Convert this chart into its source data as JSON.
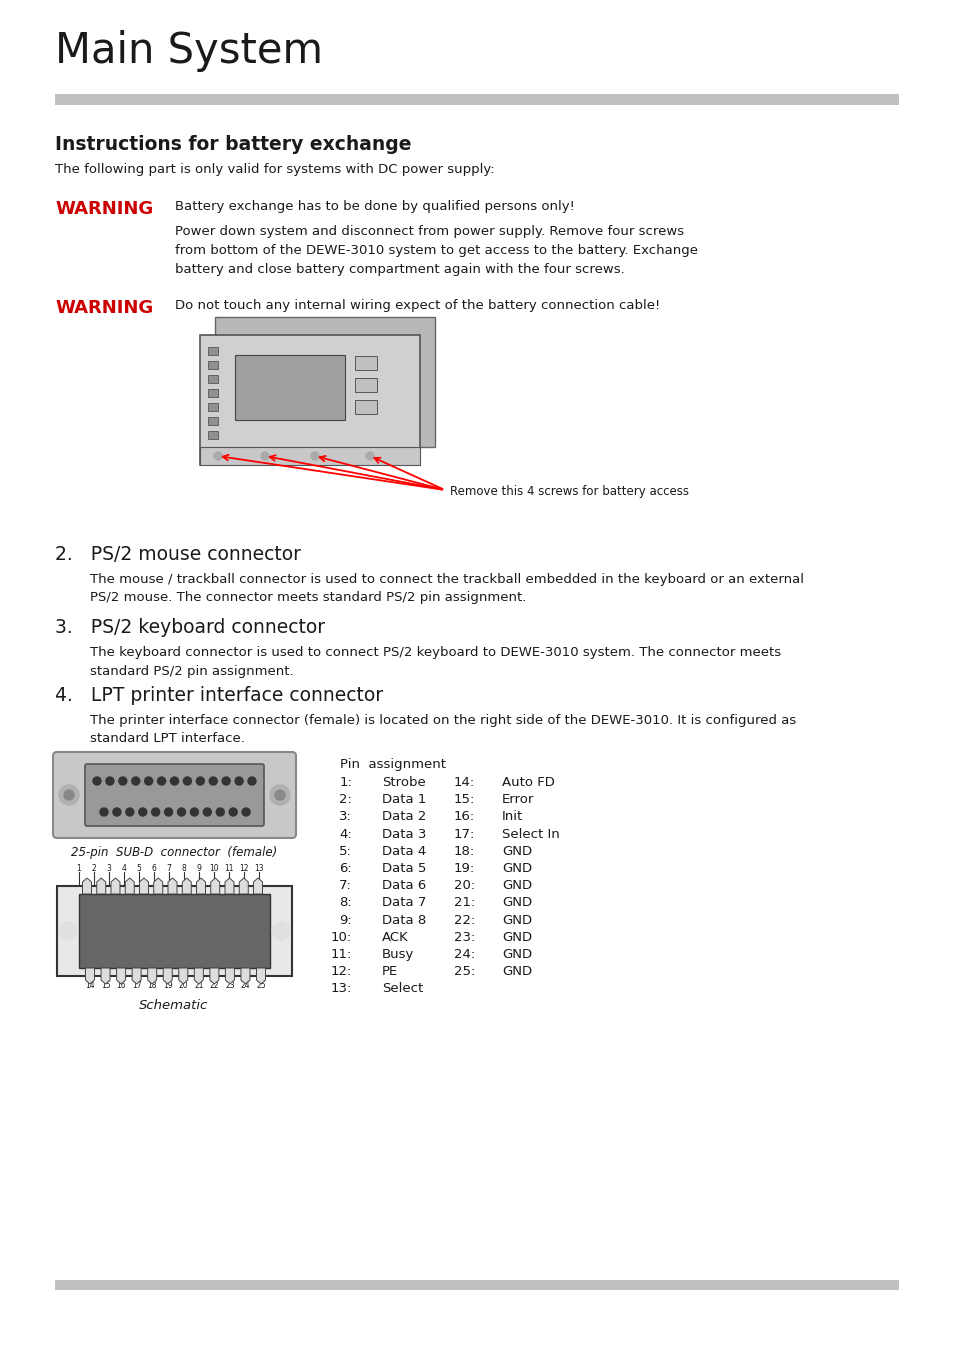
{
  "title": "Main System",
  "section_title": "Instructions for battery exchange",
  "section_intro": "The following part is only valid for systems with DC power supply:",
  "warning1_label": "WARNING",
  "warning1_text": "Battery exchange has to be done by qualified persons only!",
  "warning1_detail": "Power down system and disconnect from power supply. Remove four screws\nfrom bottom of the DEWE-3010 system to get access to the battery. Exchange\nbattery and close battery compartment again with the four screws.",
  "warning2_label": "WARNING",
  "warning2_text": "Do not touch any internal wiring expect of the battery connection cable!",
  "image_caption": "Remove this 4 screws for battery access",
  "section2_num": "2.",
  "section2_title": "PS/2 mouse connector",
  "section2_text": "The mouse / trackball connector is used to connect the trackball embedded in the keyboard or an external\nPS/2 mouse. The connector meets standard PS/2 pin assignment.",
  "section3_num": "3.",
  "section3_title": "PS/2 keyboard connector",
  "section3_text": "The keyboard connector is used to connect PS/2 keyboard to DEWE-3010 system. The connector meets\nstandard PS/2 pin assignment.",
  "section4_num": "4.",
  "section4_title": "LPT printer interface connector",
  "section4_text": "The printer interface connector (female) is located on the right side of the DEWE-3010. It is configured as\nstandard LPT interface.",
  "connector_label": "25-pin  SUB-D  connector  (female)",
  "schematic_label": "Schematic",
  "pin_header": "Pin  assignment",
  "pins_left": [
    [
      "1:",
      "Strobe"
    ],
    [
      "2:",
      "Data 1"
    ],
    [
      "3:",
      "Data 2"
    ],
    [
      "4:",
      "Data 3"
    ],
    [
      "5:",
      "Data 4"
    ],
    [
      "6:",
      "Data 5"
    ],
    [
      "7:",
      "Data 6"
    ],
    [
      "8:",
      "Data 7"
    ],
    [
      "9:",
      "Data 8"
    ],
    [
      "10:",
      "ACK"
    ],
    [
      "11:",
      "Busy"
    ],
    [
      "12:",
      "PE"
    ],
    [
      "13:",
      "Select"
    ]
  ],
  "pins_right": [
    [
      "14:",
      "Auto FD"
    ],
    [
      "15:",
      "Error"
    ],
    [
      "16:",
      "Init"
    ],
    [
      "17:",
      "Select In"
    ],
    [
      "18:",
      "GND"
    ],
    [
      "19:",
      "GND"
    ],
    [
      "20:",
      "GND"
    ],
    [
      "21:",
      "GND"
    ],
    [
      "22:",
      "GND"
    ],
    [
      "23:",
      "GND"
    ],
    [
      "24:",
      "GND"
    ],
    [
      "25:",
      "GND"
    ]
  ],
  "warning_color": "#cc0000",
  "bg_color": "#ffffff",
  "text_color": "#1a1a1a",
  "gray_bar_color": "#c0c0c0",
  "body_fontsize": 9.5,
  "title_fontsize": 30,
  "section_fontsize": 13.5,
  "warning_fontsize": 13
}
